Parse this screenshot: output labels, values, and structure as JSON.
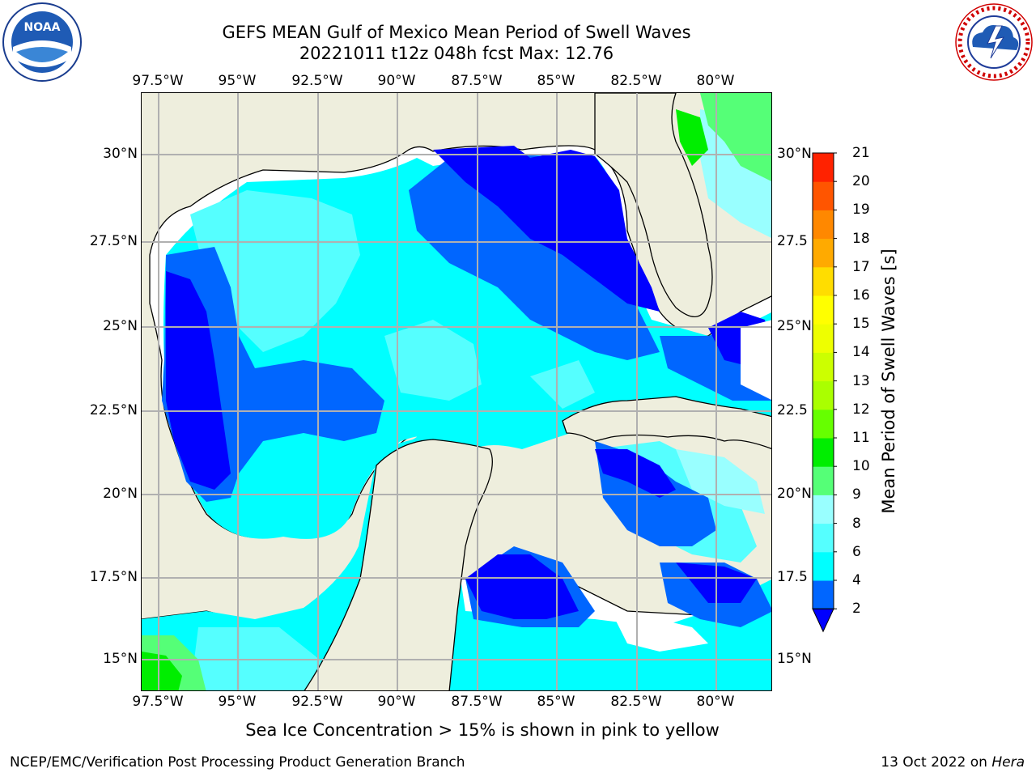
{
  "header": {
    "title_line1": "GEFS MEAN Gulf of Mexico Mean Period of Swell Waves",
    "title_line2": "20221011 t12z 048h fcst   Max: 12.76"
  },
  "map": {
    "lon_labels_top": [
      "97.5°W",
      "95°W",
      "92.5°W",
      "90°W",
      "87.5°W",
      "85°W",
      "82.5°W",
      "80°W"
    ],
    "lon_labels_bottom": [
      "97.5°W",
      "95°W",
      "92.5°W",
      "90°W",
      "87.5°W",
      "85°W",
      "82.5°W",
      "80°W"
    ],
    "lat_labels_left": [
      "30°N",
      "27.5°N",
      "25°N",
      "22.5°N",
      "20°N",
      "17.5°N",
      "15°N"
    ],
    "lat_labels_right": [
      "30°N",
      "27.5",
      "25°N",
      "22.5",
      "20°N",
      "17.5",
      "15°N"
    ],
    "lon_values": [
      -97.5,
      -95,
      -92.5,
      -90,
      -87.5,
      -85,
      -82.5,
      -80
    ],
    "lat_values": [
      30,
      27.5,
      25,
      22.5,
      20,
      17.5,
      15
    ],
    "colors": {
      "land": "#eeeedd",
      "ocean_missing": "#ffffff",
      "grid": "#b0b0b0"
    }
  },
  "colorbar": {
    "title": "Mean Period of Swell Waves [s]",
    "levels": [
      2,
      4,
      6,
      8,
      9,
      10,
      11,
      12,
      13,
      14,
      15,
      16,
      17,
      18,
      19,
      20,
      21
    ],
    "colors": [
      "#0066ff",
      "#00ffff",
      "#55ffff",
      "#99ffff",
      "#55ff77",
      "#00ee00",
      "#66ff00",
      "#aaff00",
      "#ccff00",
      "#eeff00",
      "#ffff00",
      "#ffdd00",
      "#ffaa00",
      "#ff8800",
      "#ff5500",
      "#ff2200"
    ],
    "under_color": "#0000ff",
    "top_color": "#ff0000"
  },
  "footnote": "Sea Ice Concentration > 15% is shown in pink to yellow",
  "footer": {
    "left": "NCEP/EMC/Verification Post Processing Product Generation Branch",
    "right_prefix": "13 Oct 2022 on ",
    "right_italic": "Hera"
  },
  "logos": {
    "noaa_text": "NOAA",
    "nws_text": "NATIONAL WEATHER SERVICE"
  }
}
